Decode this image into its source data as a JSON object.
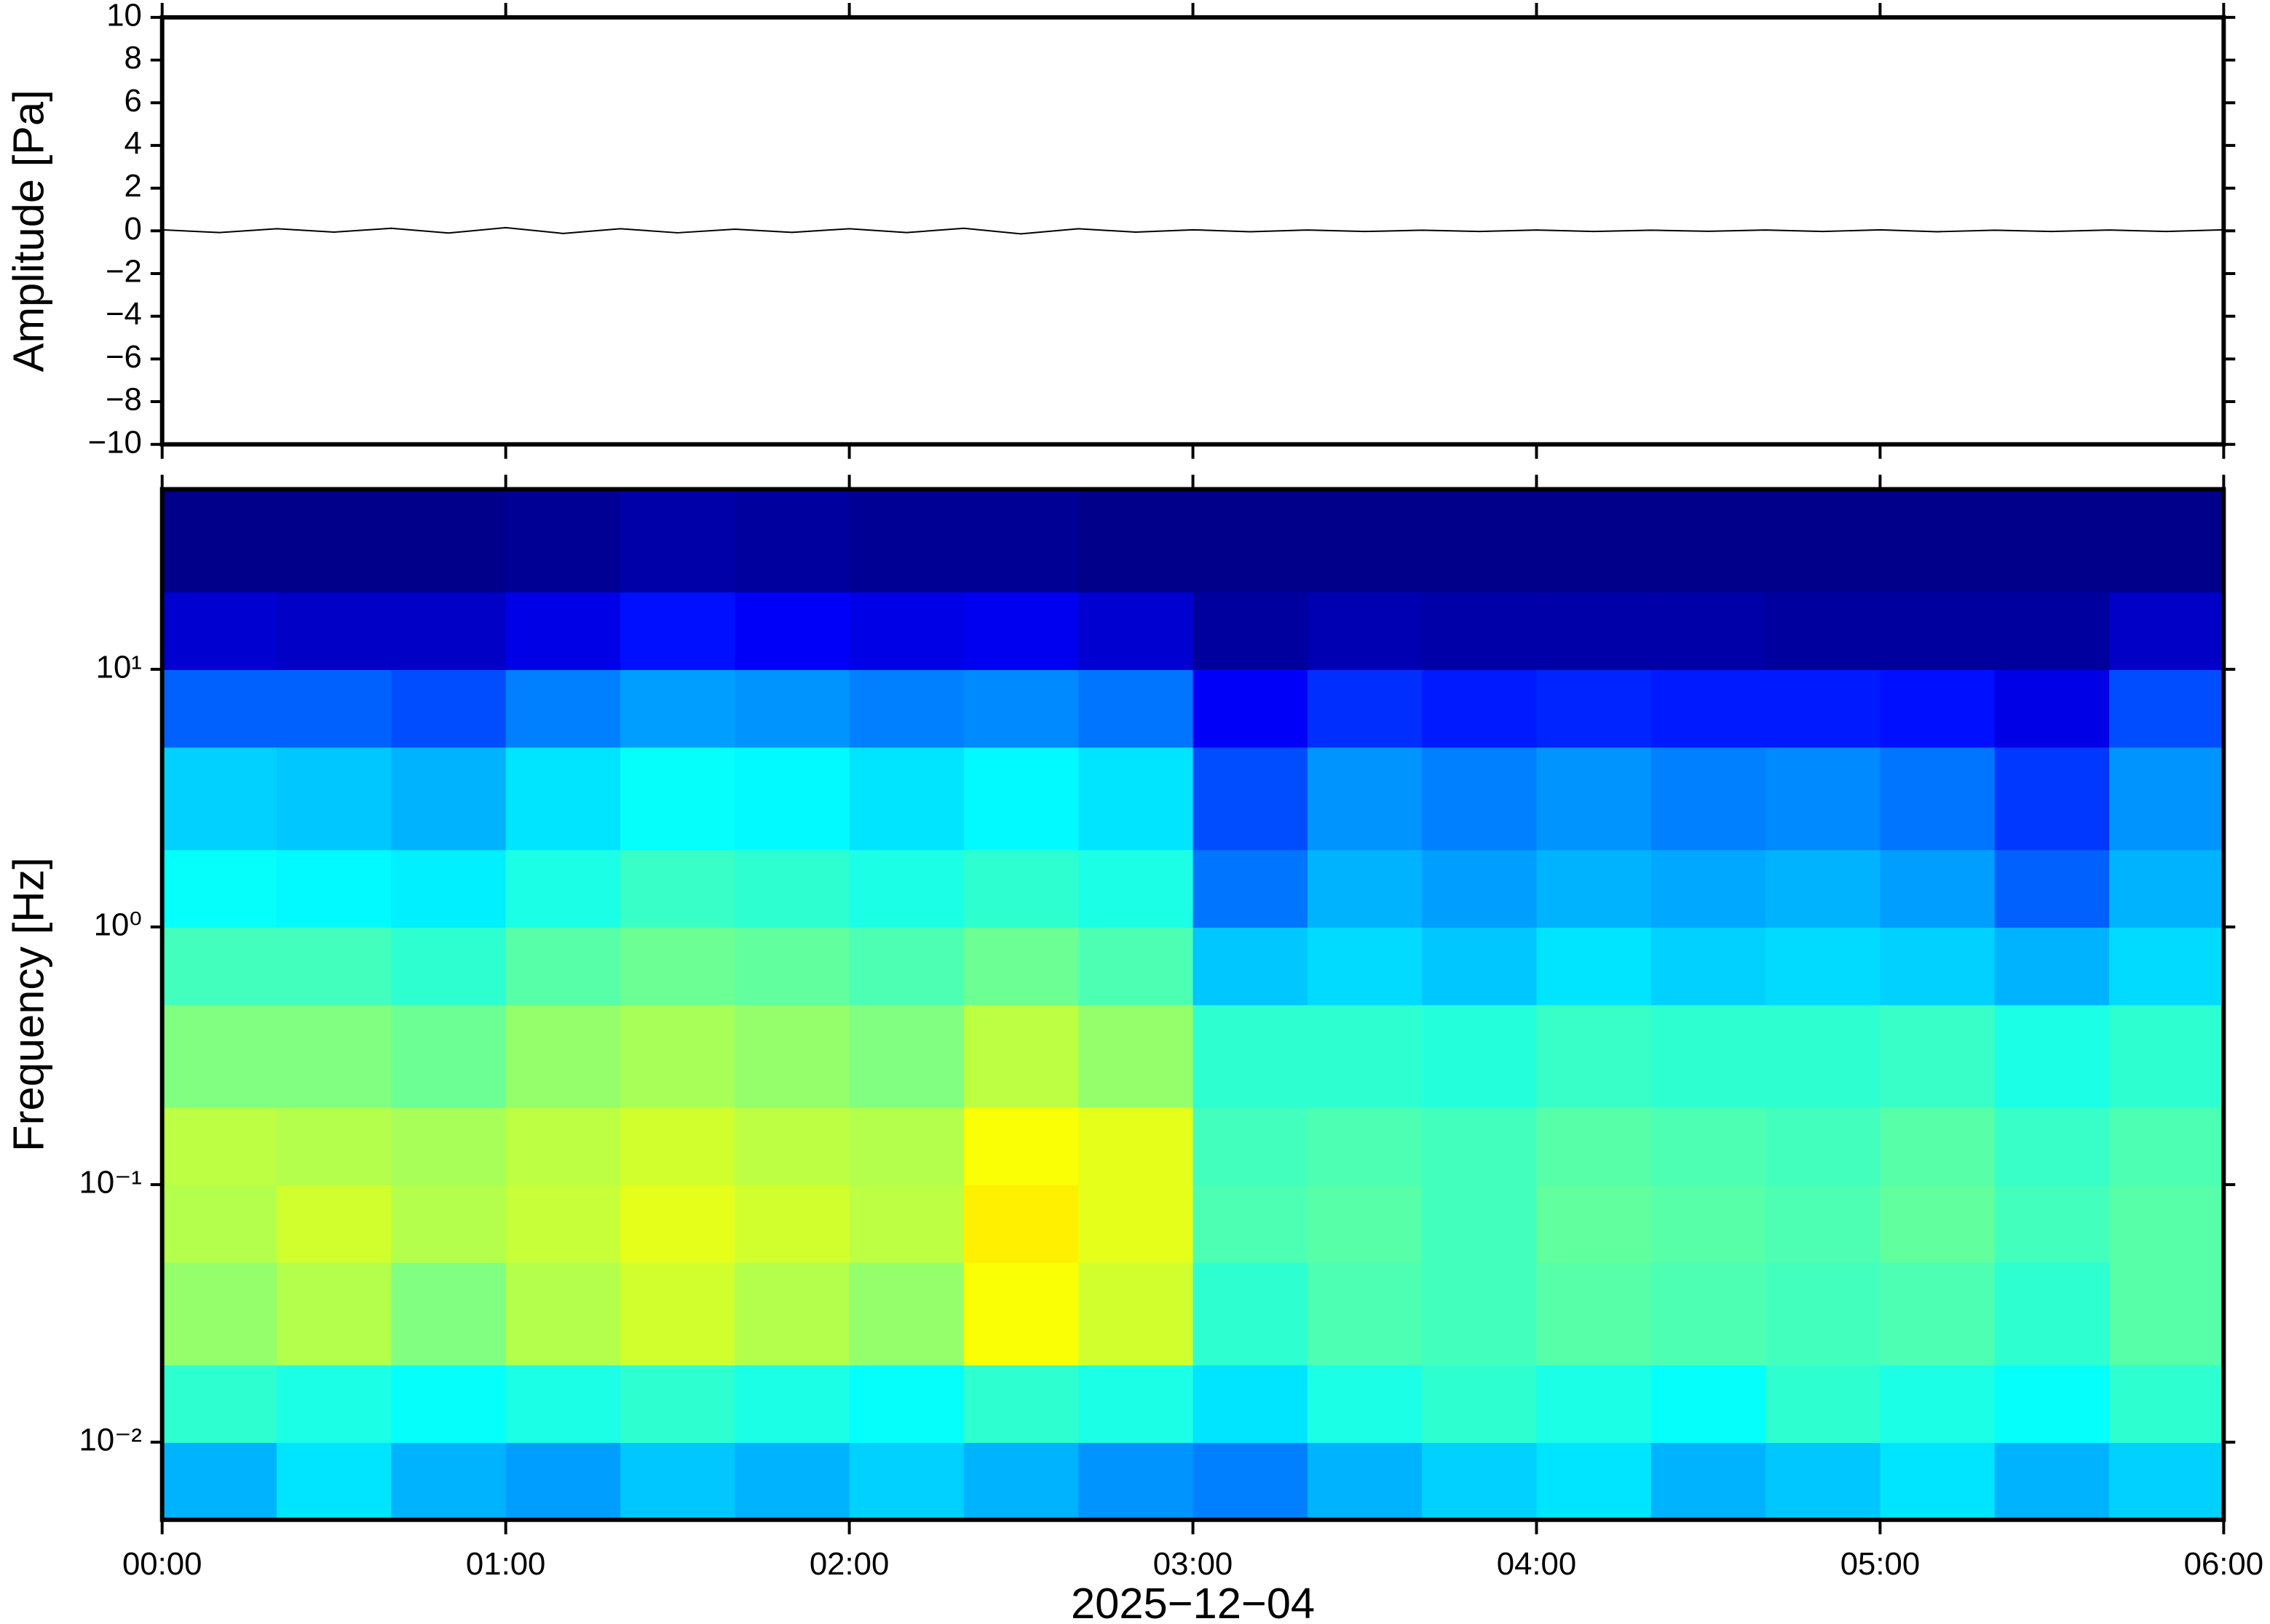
{
  "chart_data": [
    {
      "type": "line",
      "ylabel": "Amplitude [Pa]",
      "x": [
        0,
        10,
        20,
        30,
        40,
        50,
        60,
        70,
        80,
        90,
        100,
        110,
        120,
        130,
        140,
        150,
        160,
        170,
        180,
        190,
        200,
        210,
        220,
        230,
        240,
        250,
        260,
        270,
        280,
        290,
        300,
        310,
        320,
        330,
        340,
        350,
        360
      ],
      "values": [
        0.05,
        -0.08,
        0.1,
        -0.06,
        0.12,
        -0.1,
        0.15,
        -0.12,
        0.1,
        -0.09,
        0.08,
        -0.07,
        0.1,
        -0.08,
        0.12,
        -0.14,
        0.1,
        -0.06,
        0.05,
        -0.04,
        0.04,
        -0.03,
        0.03,
        -0.03,
        0.04,
        -0.03,
        0.03,
        -0.02,
        0.04,
        -0.03,
        0.05,
        -0.04,
        0.03,
        -0.03,
        0.04,
        -0.03,
        0.05
      ],
      "color": "#000000",
      "xlim": [
        0,
        360
      ],
      "xticks": [
        0,
        60,
        120,
        180,
        240,
        300,
        360
      ],
      "ylim": [
        -10,
        10
      ],
      "yticks": [
        {
          "value": -10,
          "label": "−10"
        },
        {
          "value": -8,
          "label": "−8"
        },
        {
          "value": -6,
          "label": "−6"
        },
        {
          "value": -4,
          "label": "−4"
        },
        {
          "value": -2,
          "label": "−2"
        },
        0,
        2,
        4,
        6,
        8,
        10
      ]
    },
    {
      "type": "heatmap",
      "ylabel": "Frequency [Hz]",
      "xlabel": "2025−12−04",
      "colormap": "jet",
      "yscale": "log",
      "xbins": [
        0,
        20,
        40,
        60,
        80,
        100,
        120,
        140,
        160,
        180,
        200,
        220,
        240,
        260,
        280,
        300,
        320,
        340,
        360
      ],
      "ybins": [
        0.005,
        0.01,
        0.02,
        0.05,
        0.1,
        0.2,
        0.5,
        1,
        2,
        5,
        10,
        20,
        50
      ],
      "z": [
        [
          0.3,
          0.35,
          0.3,
          0.28,
          0.32,
          0.3,
          0.33,
          0.3,
          0.27,
          0.25,
          0.3,
          0.33,
          0.35,
          0.3,
          0.32,
          0.35,
          0.3,
          0.33
        ],
        [
          0.42,
          0.4,
          0.38,
          0.4,
          0.42,
          0.4,
          0.38,
          0.42,
          0.4,
          0.35,
          0.4,
          0.42,
          0.4,
          0.38,
          0.42,
          0.4,
          0.38,
          0.42
        ],
        [
          0.52,
          0.55,
          0.5,
          0.55,
          0.58,
          0.55,
          0.52,
          0.62,
          0.58,
          0.42,
          0.45,
          0.44,
          0.46,
          0.45,
          0.44,
          0.45,
          0.42,
          0.46
        ],
        [
          0.55,
          0.58,
          0.55,
          0.57,
          0.6,
          0.58,
          0.56,
          0.64,
          0.6,
          0.45,
          0.46,
          0.44,
          0.47,
          0.46,
          0.45,
          0.47,
          0.44,
          0.46
        ],
        [
          0.56,
          0.55,
          0.54,
          0.56,
          0.58,
          0.56,
          0.55,
          0.62,
          0.6,
          0.44,
          0.45,
          0.44,
          0.46,
          0.45,
          0.44,
          0.46,
          0.43,
          0.45
        ],
        [
          0.5,
          0.5,
          0.48,
          0.52,
          0.54,
          0.52,
          0.5,
          0.56,
          0.52,
          0.42,
          0.42,
          0.41,
          0.43,
          0.42,
          0.42,
          0.43,
          0.4,
          0.42
        ],
        [
          0.44,
          0.44,
          0.42,
          0.46,
          0.48,
          0.47,
          0.45,
          0.48,
          0.45,
          0.32,
          0.34,
          0.32,
          0.35,
          0.33,
          0.34,
          0.33,
          0.3,
          0.34
        ],
        [
          0.38,
          0.37,
          0.36,
          0.4,
          0.43,
          0.42,
          0.4,
          0.42,
          0.4,
          0.24,
          0.3,
          0.28,
          0.3,
          0.29,
          0.3,
          0.28,
          0.22,
          0.3
        ],
        [
          0.33,
          0.32,
          0.3,
          0.35,
          0.38,
          0.37,
          0.35,
          0.37,
          0.35,
          0.2,
          0.27,
          0.25,
          0.27,
          0.25,
          0.26,
          0.24,
          0.18,
          0.27
        ],
        [
          0.22,
          0.22,
          0.2,
          0.25,
          0.28,
          0.27,
          0.25,
          0.26,
          0.24,
          0.12,
          0.17,
          0.15,
          0.16,
          0.15,
          0.15,
          0.14,
          0.1,
          0.2
        ],
        [
          0.08,
          0.07,
          0.07,
          0.1,
          0.14,
          0.12,
          0.1,
          0.11,
          0.08,
          0.03,
          0.05,
          0.04,
          0.04,
          0.04,
          0.03,
          0.03,
          0.03,
          0.07
        ],
        [
          0.01,
          0.01,
          0.01,
          0.02,
          0.04,
          0.03,
          0.02,
          0.02,
          0.01,
          0.01,
          0.01,
          0.01,
          0.01,
          0.01,
          0.01,
          0.01,
          0.01,
          0.01
        ]
      ],
      "xlim": [
        0,
        360
      ],
      "xticks": [
        {
          "value": 0,
          "label": "00:00"
        },
        {
          "value": 60,
          "label": "01:00"
        },
        {
          "value": 120,
          "label": "02:00"
        },
        {
          "value": 180,
          "label": "03:00"
        },
        {
          "value": 240,
          "label": "04:00"
        },
        {
          "value": 300,
          "label": "05:00"
        },
        {
          "value": 360,
          "label": "06:00"
        }
      ],
      "ylim": [
        0.005,
        50
      ],
      "yticks": [
        {
          "value": 0.01,
          "label": "10⁻²"
        },
        {
          "value": 0.1,
          "label": "10⁻¹"
        },
        {
          "value": 1,
          "label": "10⁰"
        },
        {
          "value": 10,
          "label": "10¹"
        }
      ]
    }
  ]
}
